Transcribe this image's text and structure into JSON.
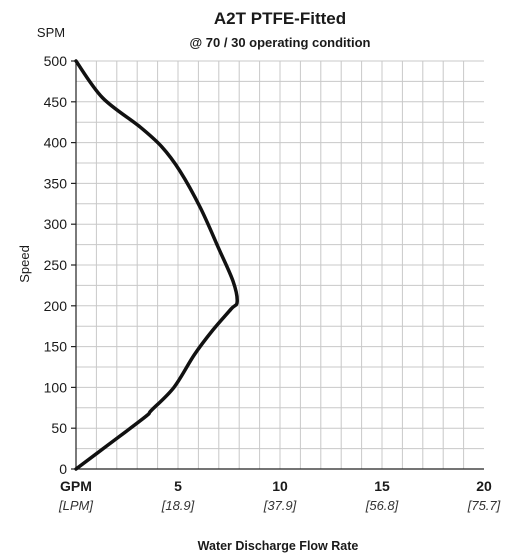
{
  "chart_data": {
    "type": "line",
    "title": "A2T PTFE-Fitted",
    "subtitle": "@ 70 / 30 operating condition",
    "ylabel": "Speed",
    "yunit": "SPM",
    "xlabel": "Water Discharge Flow Rate",
    "xlim": [
      0,
      20
    ],
    "ylim": [
      0,
      500
    ],
    "grid": true,
    "x_unit_primary": "GPM",
    "x_unit_secondary": "[LPM]",
    "xticks": [
      {
        "value": 5,
        "label": "5",
        "label2": "[18.9]"
      },
      {
        "value": 10,
        "label": "10",
        "label2": "[37.9]"
      },
      {
        "value": 15,
        "label": "15",
        "label2": "[56.8]"
      },
      {
        "value": 20,
        "label": "20",
        "label2": "[75.7]"
      }
    ],
    "yticks": [
      0,
      50,
      100,
      150,
      200,
      250,
      300,
      350,
      400,
      450,
      500
    ],
    "series": [
      {
        "color": "#111111",
        "x": [
          0.0,
          1.6,
          3.4,
          3.7,
          4.8,
          5.8,
          6.7,
          7.6,
          7.9,
          7.7,
          7.0,
          6.1,
          5.1,
          4.2,
          3.1,
          1.3,
          0.0
        ],
        "y": [
          0,
          30,
          64,
          72,
          100,
          140,
          170,
          196,
          205,
          230,
          270,
          320,
          365,
          395,
          420,
          455,
          500
        ]
      }
    ]
  }
}
